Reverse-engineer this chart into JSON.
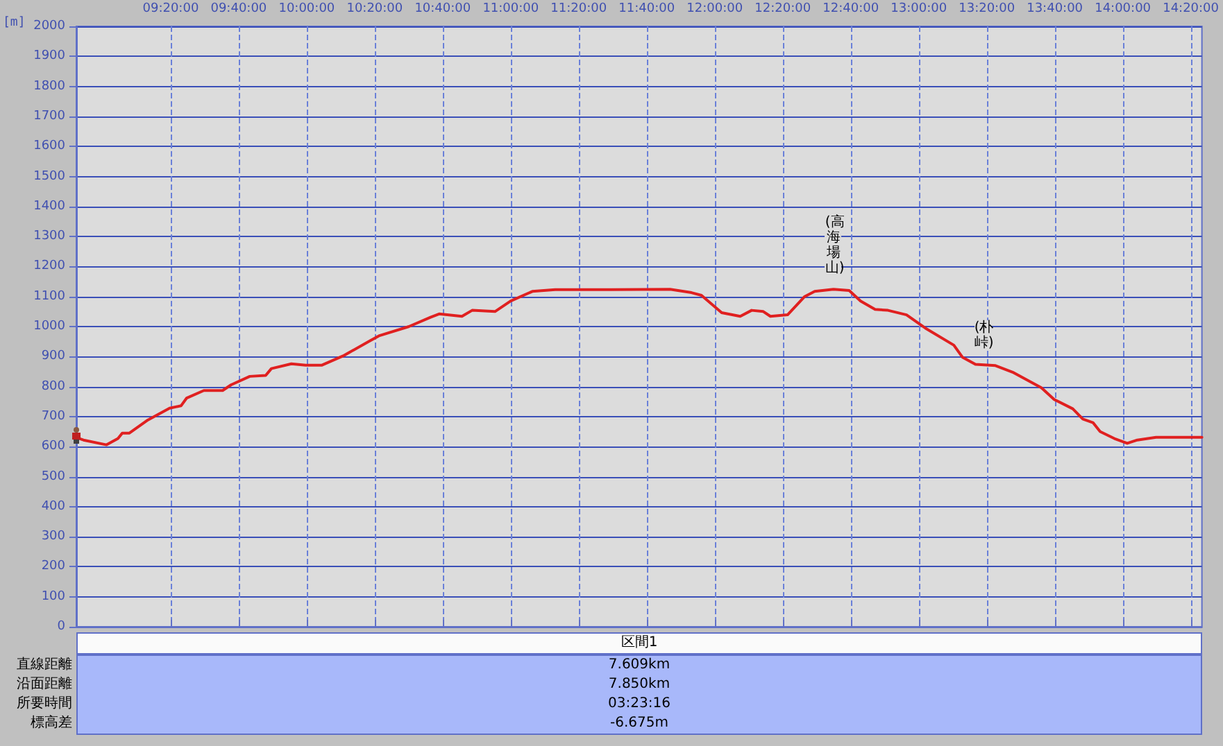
{
  "chart_data": {
    "type": "line",
    "ylabel": "[m]",
    "x": [
      8.871,
      8.906,
      9.019,
      9.075,
      9.096,
      9.131,
      9.222,
      9.328,
      9.384,
      9.412,
      9.496,
      9.588,
      9.63,
      9.721,
      9.799,
      9.827,
      9.925,
      9.995,
      10.073,
      10.178,
      10.312,
      10.354,
      10.501,
      10.607,
      10.649,
      10.761,
      10.811,
      10.923,
      11.0,
      11.106,
      11.218,
      11.492,
      11.781,
      11.886,
      11.935,
      12.034,
      12.125,
      12.181,
      12.238,
      12.273,
      12.357,
      12.441,
      12.49,
      12.582,
      12.659,
      12.715,
      12.786,
      12.849,
      12.94,
      13.032,
      13.172,
      13.214,
      13.278,
      13.376,
      13.46,
      13.601,
      13.664,
      13.755,
      13.804,
      13.854,
      13.889,
      13.959,
      14.022,
      14.071,
      14.163,
      14.388
    ],
    "series": [
      {
        "color": "#e02020",
        "values": [
          630,
          622,
          606,
          627,
          645,
          645,
          689,
          728,
          736,
          762,
          787,
          787,
          806,
          834,
          837,
          860,
          876,
          871,
          871,
          902,
          953,
          969,
          1000,
          1031,
          1042,
          1034,
          1054,
          1050,
          1085,
          1117,
          1123,
          1123,
          1124,
          1113,
          1104,
          1046,
          1034,
          1054,
          1050,
          1034,
          1039,
          1100,
          1117,
          1124,
          1120,
          1085,
          1057,
          1054,
          1039,
          995,
          938,
          898,
          874,
          870,
          848,
          796,
          757,
          726,
          692,
          680,
          650,
          627,
          611,
          622,
          631,
          631
        ]
      }
    ],
    "xlim": [
      8.871,
      14.388
    ],
    "xticks": [
      {
        "value": 9.3333333,
        "label": "09:20:00"
      },
      {
        "value": 9.6666667,
        "label": "09:40:00"
      },
      {
        "value": 10,
        "label": "10:00:00"
      },
      {
        "value": 10.3333333,
        "label": "10:20:00"
      },
      {
        "value": 10.6666667,
        "label": "10:40:00"
      },
      {
        "value": 11,
        "label": "11:00:00"
      },
      {
        "value": 11.3333333,
        "label": "11:20:00"
      },
      {
        "value": 11.6666667,
        "label": "11:40:00"
      },
      {
        "value": 12,
        "label": "12:00:00"
      },
      {
        "value": 12.3333333,
        "label": "12:20:00"
      },
      {
        "value": 12.6666667,
        "label": "12:40:00"
      },
      {
        "value": 13,
        "label": "13:00:00"
      },
      {
        "value": 13.3333333,
        "label": "13:20:00"
      },
      {
        "value": 13.6666667,
        "label": "13:40:00"
      },
      {
        "value": 14,
        "label": "14:00:00"
      },
      {
        "value": 14.3333333,
        "label": "14:20:00"
      }
    ],
    "ylim": [
      0,
      2000
    ],
    "yticks": [
      0,
      100,
      200,
      300,
      400,
      500,
      600,
      700,
      800,
      900,
      1000,
      1100,
      1200,
      1300,
      1400,
      1500,
      1600,
      1700,
      1800,
      1900,
      2000
    ],
    "grid": true,
    "marker": "none",
    "line_style": "solid",
    "annotations": [
      {
        "text": "(高海場山)",
        "x": 12.582,
        "y": 1124
      },
      {
        "text": "(朴峠)",
        "x": 13.313,
        "y": 874
      },
      "区間1",
      "直線距離",
      "7.609km",
      "沿面距離",
      "7.850km",
      "所要時間",
      "03:23:16",
      "標高差",
      "-6.675m"
    ]
  }
}
